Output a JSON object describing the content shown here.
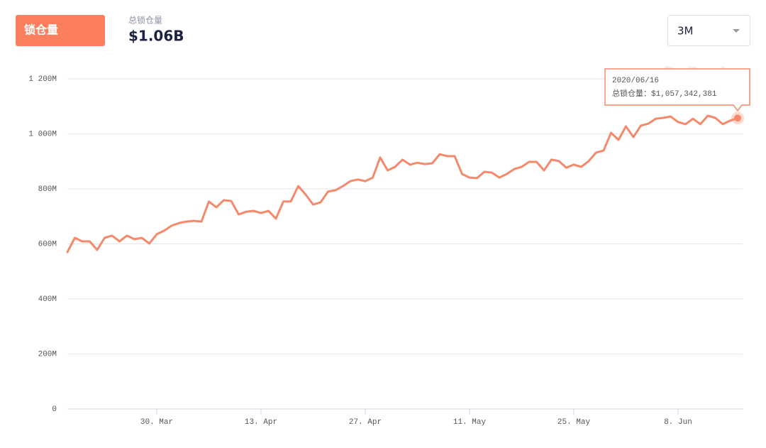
{
  "header": {
    "button": "锁仓量",
    "label": "总锁仓量",
    "value": "$1.06B",
    "dropdown": "3M"
  },
  "chart_data": {
    "type": "line",
    "watermark": "DeBank",
    "categories": [
      null,
      null,
      null,
      null,
      null,
      null,
      null,
      null,
      null,
      null,
      null,
      null,
      "30. Mar",
      null,
      null,
      null,
      null,
      null,
      null,
      null,
      null,
      null,
      null,
      null,
      null,
      null,
      "13. Apr",
      null,
      null,
      null,
      null,
      null,
      null,
      null,
      null,
      null,
      null,
      null,
      null,
      null,
      "27. Apr",
      null,
      null,
      null,
      null,
      null,
      null,
      null,
      null,
      null,
      null,
      null,
      null,
      null,
      "11. May",
      null,
      null,
      null,
      null,
      null,
      null,
      null,
      null,
      null,
      null,
      null,
      null,
      null,
      "25. May",
      null,
      null,
      null,
      null,
      null,
      null,
      null,
      null,
      null,
      null,
      null,
      null,
      null,
      "8. Jun",
      null,
      null,
      null,
      null,
      null,
      null,
      null,
      null
    ],
    "series": [
      {
        "name": "总锁仓量",
        "color": "#f5896b",
        "values": [
          570,
          622,
          609,
          609,
          578,
          622,
          630,
          609,
          630,
          617,
          622,
          601,
          635,
          648,
          666,
          676,
          681,
          684,
          681,
          754,
          733,
          759,
          756,
          707,
          717,
          720,
          712,
          720,
          692,
          754,
          754,
          810,
          779,
          743,
          751,
          790,
          795,
          810,
          828,
          834,
          828,
          841,
          914,
          867,
          880,
          906,
          888,
          895,
          890,
          893,
          926,
          919,
          919,
          854,
          841,
          839,
          862,
          859,
          841,
          854,
          872,
          880,
          898,
          898,
          867,
          906,
          901,
          877,
          888,
          880,
          901,
          932,
          939,
          1004,
          978,
          1027,
          988,
          1030,
          1037,
          1055,
          1058,
          1063,
          1043,
          1035,
          1055,
          1035,
          1066,
          1058,
          1035,
          1048,
          1057.342381
        ]
      }
    ],
    "ylim": [
      0,
      1200
    ],
    "yticks": [
      0,
      {
        "value": 200,
        "label": "200M"
      },
      {
        "value": 400,
        "label": "400M"
      },
      {
        "value": 600,
        "label": "600M"
      },
      {
        "value": 800,
        "label": "800M"
      },
      {
        "value": 1000,
        "label": "1 000M"
      },
      {
        "value": 1200,
        "label": "1 200M"
      }
    ],
    "grid": true,
    "tooltip": {
      "date": "2020/06/16",
      "text": "总锁仓量：$1,057,342,381"
    }
  }
}
